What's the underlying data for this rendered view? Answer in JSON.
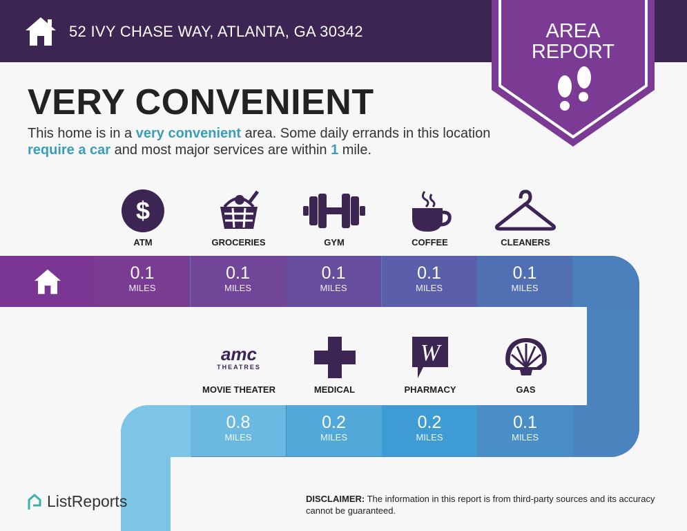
{
  "header": {
    "address": "52 IVY CHASE WAY, ATLANTA, GA 30342"
  },
  "badge": {
    "line1": "AREA",
    "line2": "REPORT"
  },
  "title": "VERY CONVENIENT",
  "description": {
    "t1": "This home is in a ",
    "h1": "very convenient",
    "t2": " area. Some daily errands in this location ",
    "h2": "require a car",
    "t3": " and most major services are within ",
    "h3": "1",
    "t4": " mile."
  },
  "row1": [
    {
      "label": "ATM",
      "value": "0.1",
      "unit": "MILES",
      "icon": "dollar-icon"
    },
    {
      "label": "GROCERIES",
      "value": "0.1",
      "unit": "MILES",
      "icon": "basket-icon"
    },
    {
      "label": "GYM",
      "value": "0.1",
      "unit": "MILES",
      "icon": "dumbbell-icon"
    },
    {
      "label": "COFFEE",
      "value": "0.1",
      "unit": "MILES",
      "icon": "coffee-icon"
    },
    {
      "label": "CLEANERS",
      "value": "0.1",
      "unit": "MILES",
      "icon": "hanger-icon"
    }
  ],
  "row2": [
    {
      "label": "MOVIE THEATER",
      "value": "0.8",
      "unit": "MILES",
      "icon": "amc-logo",
      "logo_text": "AMC THEATRES"
    },
    {
      "label": "MEDICAL",
      "value": "0.2",
      "unit": "MILES",
      "icon": "cross-icon"
    },
    {
      "label": "PHARMACY",
      "value": "0.2",
      "unit": "MILES",
      "icon": "walgreens-logo"
    },
    {
      "label": "GAS",
      "value": "0.1",
      "unit": "MILES",
      "icon": "shell-logo"
    }
  ],
  "footer": {
    "brand": "ListReports",
    "disclaimer_label": "DISCLAIMER:",
    "disclaimer": " The information in this report is from third-party sources and its accuracy cannot be guaranteed."
  },
  "colors": {
    "header": "#3c2453",
    "badge": "#7b3a93",
    "accent": "#3b9db8",
    "icon": "#3c2453"
  }
}
